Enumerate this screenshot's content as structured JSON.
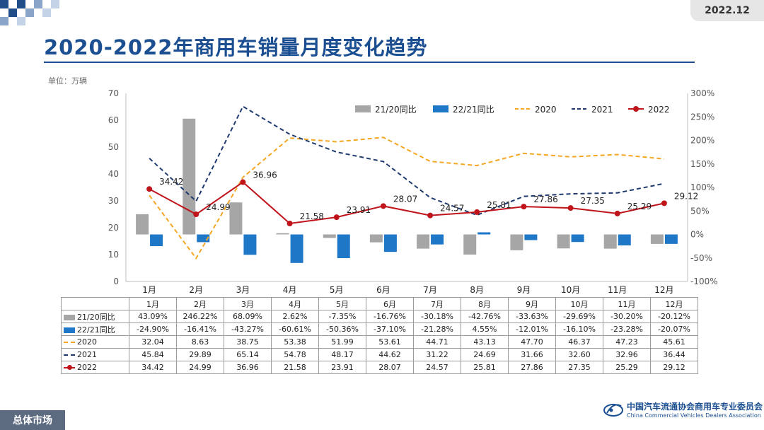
{
  "header": {
    "title": "2020-2022年商用车销量月度变化趋势",
    "date": "2022.12",
    "unit": "单位：万辆"
  },
  "footer": {
    "section": "总体市场",
    "org_cn": "中国汽车流通协会商用车专业委员会",
    "org_en": "China Commercial Vehicles Dealers Association"
  },
  "colors": {
    "bar_2120": "#a6a6a6",
    "bar_2221": "#1f77c8",
    "line_2020": "#f5a623",
    "line_2021": "#1f3a6e",
    "line_2022": "#c0141b",
    "title": "#1b4f91"
  },
  "chart_data": {
    "type": "bar+line",
    "categories": [
      "1月",
      "2月",
      "3月",
      "4月",
      "5月",
      "6月",
      "7月",
      "8月",
      "9月",
      "10月",
      "11月",
      "12月"
    ],
    "left_axis": {
      "ylim": [
        0,
        70
      ],
      "ticks": [
        "0",
        "10",
        "20",
        "30",
        "40",
        "50",
        "60",
        "70"
      ]
    },
    "right_axis": {
      "ylim": [
        -100,
        300
      ],
      "ticks": [
        "-100%",
        "-50%",
        "0%",
        "50%",
        "100%",
        "150%",
        "200%",
        "250%",
        "300%"
      ]
    },
    "bar_series": [
      {
        "name": "21/20同比",
        "values": [
          43.09,
          246.22,
          68.09,
          2.62,
          -7.35,
          -16.76,
          -30.18,
          -42.76,
          -33.63,
          -29.69,
          -30.2,
          -20.12
        ],
        "labels": [
          "43.09%",
          "246.22%",
          "68.09%",
          "2.62%",
          "-7.35%",
          "-16.76%",
          "-30.18%",
          "-42.76%",
          "-33.63%",
          "-29.69%",
          "-30.20%",
          "-20.12%"
        ]
      },
      {
        "name": "22/21同比",
        "values": [
          -24.9,
          -16.41,
          -43.27,
          -60.61,
          -50.36,
          -37.1,
          -21.28,
          4.55,
          -12.01,
          -16.1,
          -23.28,
          -20.07
        ],
        "labels": [
          "-24.90%",
          "-16.41%",
          "-43.27%",
          "-60.61%",
          "-50.36%",
          "-37.10%",
          "-21.28%",
          "4.55%",
          "-12.01%",
          "-16.10%",
          "-23.28%",
          "-20.07%"
        ]
      }
    ],
    "line_series": [
      {
        "name": "2020",
        "values": [
          32.04,
          8.63,
          38.75,
          53.38,
          51.99,
          53.61,
          44.71,
          43.13,
          47.7,
          46.37,
          47.23,
          45.61
        ],
        "labels": [
          "32.04",
          "8.63",
          "38.75",
          "53.38",
          "51.99",
          "53.61",
          "44.71",
          "43.13",
          "47.70",
          "46.37",
          "47.23",
          "45.61"
        ]
      },
      {
        "name": "2021",
        "values": [
          45.84,
          29.89,
          65.14,
          54.78,
          48.17,
          44.62,
          31.22,
          24.69,
          31.66,
          32.6,
          32.96,
          36.44
        ],
        "labels": [
          "45.84",
          "29.89",
          "65.14",
          "54.78",
          "48.17",
          "44.62",
          "31.22",
          "24.69",
          "31.66",
          "32.60",
          "32.96",
          "36.44"
        ]
      },
      {
        "name": "2022",
        "values": [
          34.42,
          24.99,
          36.96,
          21.58,
          23.91,
          28.07,
          24.57,
          25.81,
          27.86,
          27.35,
          25.29,
          29.12
        ],
        "labels": [
          "34.42",
          "24.99",
          "36.96",
          "21.58",
          "23.91",
          "28.07",
          "24.57",
          "25.81",
          "27.86",
          "27.35",
          "25.29",
          "29.12"
        ]
      }
    ],
    "legend": [
      "21/20同比",
      "22/21同比",
      "2020",
      "2021",
      "2022"
    ],
    "legend_position": "top-right"
  }
}
